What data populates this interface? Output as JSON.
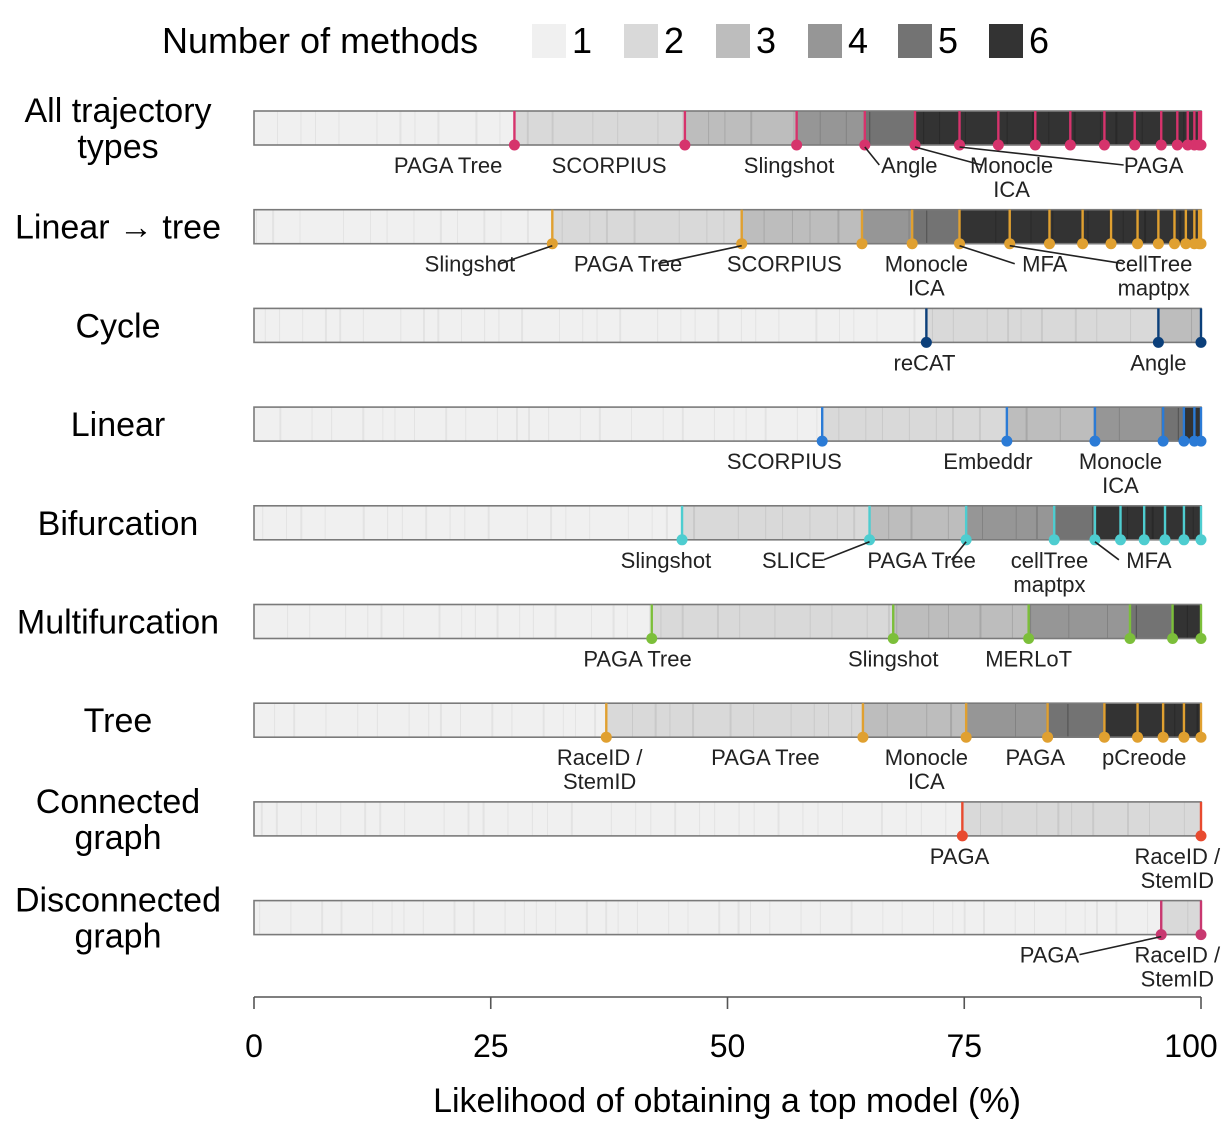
{
  "chart_data": {
    "type": "ranked-bar-strips",
    "xlabel": "Likelihood of obtaining a top model (%)",
    "xlim": [
      0,
      100
    ],
    "xticks": [
      "0",
      "25",
      "50",
      "75",
      "100"
    ],
    "legend": {
      "title": "Number of methods",
      "items": [
        {
          "label": "1",
          "color": "#f0f0f0"
        },
        {
          "label": "2",
          "color": "#d9d9d9"
        },
        {
          "label": "3",
          "color": "#bdbdbd"
        },
        {
          "label": "4",
          "color": "#969696"
        },
        {
          "label": "5",
          "color": "#737373"
        },
        {
          "label": "6",
          "color": "#333333"
        }
      ]
    },
    "rows": [
      {
        "label": [
          "All trajectory",
          "types"
        ],
        "color": "#d6336c",
        "markers": [
          27.5,
          45.5,
          57.3,
          64.5,
          69.8,
          74.5,
          78.6,
          82.5,
          86.2,
          89.8,
          93,
          95.8,
          97.5,
          98.6,
          99.3,
          99.8,
          100
        ],
        "segments": [
          {
            "from": 0,
            "to": 27.5,
            "n": 1
          },
          {
            "from": 27.5,
            "to": 45.5,
            "n": 2
          },
          {
            "from": 45.5,
            "to": 57.3,
            "n": 3
          },
          {
            "from": 57.3,
            "to": 64.5,
            "n": 4
          },
          {
            "from": 64.5,
            "to": 69.8,
            "n": 5
          },
          {
            "from": 69.8,
            "to": 100,
            "n": 6
          }
        ],
        "labels": [
          {
            "lines": [
              "PAGA Tree"
            ],
            "x": 20.5,
            "row": 0,
            "lead": false
          },
          {
            "lines": [
              "SCORPIUS"
            ],
            "x": 37.5,
            "row": 0,
            "lead": false
          },
          {
            "lines": [
              "Slingshot"
            ],
            "x": 56.5,
            "row": 0,
            "lead": false
          },
          {
            "lines": [
              "Angle"
            ],
            "x": 69.2,
            "row": 0,
            "lead": true,
            "from": 64.5
          },
          {
            "lines": [
              "Monocle",
              "ICA"
            ],
            "x": 80,
            "row": 0,
            "lead": true,
            "from": 69.8
          },
          {
            "lines": [
              "PAGA"
            ],
            "x": 95,
            "row": 0,
            "lead": true,
            "from": 74.5
          }
        ]
      },
      {
        "label": [
          "Linear → tree"
        ],
        "color": "#e0a030",
        "markers": [
          31.5,
          51.5,
          64.2,
          69.5,
          74.5,
          79.8,
          84,
          87.5,
          90.5,
          93.3,
          95.5,
          97.2,
          98.4,
          99.3,
          99.8,
          100
        ],
        "segments": [
          {
            "from": 0,
            "to": 31.5,
            "n": 1
          },
          {
            "from": 31.5,
            "to": 51.5,
            "n": 2
          },
          {
            "from": 51.5,
            "to": 64.2,
            "n": 3
          },
          {
            "from": 64.2,
            "to": 69.5,
            "n": 4
          },
          {
            "from": 69.5,
            "to": 74.5,
            "n": 5
          },
          {
            "from": 74.5,
            "to": 100,
            "n": 6
          }
        ],
        "labels": [
          {
            "lines": [
              "Slingshot"
            ],
            "x": 22.8,
            "row": 0,
            "lead": true,
            "from": 31.5
          },
          {
            "lines": [
              "PAGA Tree"
            ],
            "x": 39.5,
            "row": 0,
            "lead": true,
            "from": 51.5
          },
          {
            "lines": [
              "SCORPIUS"
            ],
            "x": 56,
            "row": 0,
            "lead": false
          },
          {
            "lines": [
              "Monocle",
              "ICA"
            ],
            "x": 71,
            "row": 0,
            "lead": false
          },
          {
            "lines": [
              "MFA"
            ],
            "x": 83.5,
            "row": 0,
            "lead": true,
            "from": 74.5
          },
          {
            "lines": [
              "cellTree",
              "maptpx"
            ],
            "x": 95,
            "row": 0,
            "lead": true,
            "from": 79.8
          }
        ]
      },
      {
        "label": [
          "Cycle"
        ],
        "color": "#0b3f7a",
        "markers": [
          71,
          95.5,
          100
        ],
        "segments": [
          {
            "from": 0,
            "to": 71,
            "n": 1
          },
          {
            "from": 71,
            "to": 95.5,
            "n": 2
          },
          {
            "from": 95.5,
            "to": 100,
            "n": 3
          }
        ],
        "labels": [
          {
            "lines": [
              "reCAT"
            ],
            "x": 70.8,
            "row": 0,
            "lead": false
          },
          {
            "lines": [
              "Angle"
            ],
            "x": 95.5,
            "row": 0,
            "lead": false
          }
        ]
      },
      {
        "label": [
          "Linear"
        ],
        "color": "#2b7bd6",
        "markers": [
          60,
          79.5,
          88.8,
          96,
          98.2,
          99.3,
          100
        ],
        "segments": [
          {
            "from": 0,
            "to": 60,
            "n": 1
          },
          {
            "from": 60,
            "to": 79.5,
            "n": 2
          },
          {
            "from": 79.5,
            "to": 88.8,
            "n": 3
          },
          {
            "from": 88.8,
            "to": 96,
            "n": 4
          },
          {
            "from": 96,
            "to": 98.2,
            "n": 5
          },
          {
            "from": 98.2,
            "to": 100,
            "n": 6
          }
        ],
        "labels": [
          {
            "lines": [
              "SCORPIUS"
            ],
            "x": 56,
            "row": 0,
            "lead": false
          },
          {
            "lines": [
              "Embeddr"
            ],
            "x": 77.5,
            "row": 0,
            "lead": false
          },
          {
            "lines": [
              "Monocle",
              "ICA"
            ],
            "x": 91.5,
            "row": 0,
            "lead": false
          }
        ]
      },
      {
        "label": [
          "Bifurcation"
        ],
        "color": "#4ecdd0",
        "markers": [
          45.2,
          65,
          75.2,
          84.5,
          88.8,
          91.5,
          94,
          96.2,
          98.2,
          100
        ],
        "segments": [
          {
            "from": 0,
            "to": 45.2,
            "n": 1
          },
          {
            "from": 45.2,
            "to": 65,
            "n": 2
          },
          {
            "from": 65,
            "to": 75.2,
            "n": 3
          },
          {
            "from": 75.2,
            "to": 84.5,
            "n": 4
          },
          {
            "from": 84.5,
            "to": 88.8,
            "n": 5
          },
          {
            "from": 88.8,
            "to": 100,
            "n": 6
          }
        ],
        "labels": [
          {
            "lines": [
              "Slingshot"
            ],
            "x": 43.5,
            "row": 0,
            "lead": false
          },
          {
            "lines": [
              "SLICE"
            ],
            "x": 57,
            "row": 0,
            "lead": true,
            "from": 65
          },
          {
            "lines": [
              "PAGA Tree"
            ],
            "x": 70.5,
            "row": 0,
            "lead": true,
            "from": 75.2
          },
          {
            "lines": [
              "cellTree",
              "maptpx"
            ],
            "x": 84,
            "row": 0,
            "lead": false
          },
          {
            "lines": [
              "MFA"
            ],
            "x": 94.5,
            "row": 0,
            "lead": true,
            "from": 88.8
          }
        ]
      },
      {
        "label": [
          "Multifurcation"
        ],
        "color": "#7cbf3a",
        "markers": [
          42,
          67.5,
          81.8,
          92.5,
          97,
          100
        ],
        "segments": [
          {
            "from": 0,
            "to": 42,
            "n": 1
          },
          {
            "from": 42,
            "to": 67.5,
            "n": 2
          },
          {
            "from": 67.5,
            "to": 81.8,
            "n": 3
          },
          {
            "from": 81.8,
            "to": 92.5,
            "n": 4
          },
          {
            "from": 92.5,
            "to": 97,
            "n": 5
          },
          {
            "from": 97,
            "to": 100,
            "n": 6
          }
        ],
        "labels": [
          {
            "lines": [
              "PAGA Tree"
            ],
            "x": 40.5,
            "row": 0,
            "lead": false
          },
          {
            "lines": [
              "Slingshot"
            ],
            "x": 67.5,
            "row": 0,
            "lead": false
          },
          {
            "lines": [
              "MERLoT"
            ],
            "x": 81.8,
            "row": 0,
            "lead": false
          }
        ]
      },
      {
        "label": [
          "Tree"
        ],
        "color": "#e0a030",
        "markers": [
          37.2,
          64.3,
          75.2,
          83.8,
          89.8,
          93.3,
          96,
          98.2,
          100
        ],
        "segments": [
          {
            "from": 0,
            "to": 37.2,
            "n": 1
          },
          {
            "from": 37.2,
            "to": 64.3,
            "n": 2
          },
          {
            "from": 64.3,
            "to": 75.2,
            "n": 3
          },
          {
            "from": 75.2,
            "to": 83.8,
            "n": 4
          },
          {
            "from": 83.8,
            "to": 89.8,
            "n": 5
          },
          {
            "from": 89.8,
            "to": 100,
            "n": 6
          }
        ],
        "labels": [
          {
            "lines": [
              "RaceID /",
              "StemID"
            ],
            "x": 36.5,
            "row": 0,
            "lead": false
          },
          {
            "lines": [
              "PAGA Tree"
            ],
            "x": 54,
            "row": 0,
            "lead": false
          },
          {
            "lines": [
              "Monocle",
              "ICA"
            ],
            "x": 71,
            "row": 0,
            "lead": false
          },
          {
            "lines": [
              "PAGA"
            ],
            "x": 82.5,
            "row": 0,
            "lead": false
          },
          {
            "lines": [
              "pCreode"
            ],
            "x": 94,
            "row": 0,
            "lead": false
          }
        ]
      },
      {
        "label": [
          "Connected",
          "graph"
        ],
        "color": "#e84a2f",
        "markers": [
          74.8,
          100
        ],
        "segments": [
          {
            "from": 0,
            "to": 74.8,
            "n": 1
          },
          {
            "from": 74.8,
            "to": 100,
            "n": 2
          }
        ],
        "labels": [
          {
            "lines": [
              "PAGA"
            ],
            "x": 74.5,
            "row": 0,
            "lead": false
          },
          {
            "lines": [
              "RaceID /",
              "StemID"
            ],
            "x": 97.5,
            "row": 0,
            "lead": false
          }
        ]
      },
      {
        "label": [
          "Disconnected",
          "graph"
        ],
        "color": "#c83870",
        "markers": [
          95.8,
          100
        ],
        "segments": [
          {
            "from": 0,
            "to": 95.8,
            "n": 1
          },
          {
            "from": 95.8,
            "to": 100,
            "n": 2
          }
        ],
        "labels": [
          {
            "lines": [
              "PAGA"
            ],
            "x": 84,
            "row": 0,
            "lead": true,
            "from": 95.8
          },
          {
            "lines": [
              "RaceID /",
              "StemID"
            ],
            "x": 97.5,
            "row": 0,
            "lead": false
          }
        ]
      }
    ]
  }
}
